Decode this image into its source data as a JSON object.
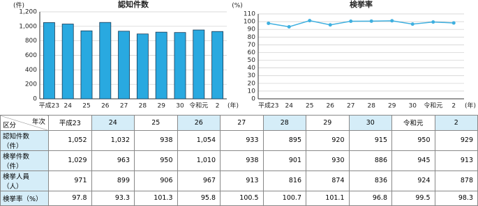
{
  "chart_data": [
    {
      "type": "bar",
      "title": "認知件数",
      "y_unit": "(件)",
      "x_unit": "(年)",
      "color": "#29a9e0",
      "categories": [
        "平成23",
        "24",
        "25",
        "26",
        "27",
        "28",
        "29",
        "30",
        "令和元",
        "2"
      ],
      "values": [
        1052,
        1032,
        938,
        1054,
        933,
        895,
        920,
        915,
        950,
        929
      ],
      "ylim": [
        0,
        1200
      ],
      "yticks": [
        0,
        200,
        400,
        600,
        800,
        {
          "value": 1000,
          "label": "1,000"
        },
        {
          "value": 1200,
          "label": "1,200"
        }
      ],
      "grid": true
    },
    {
      "type": "line",
      "title": "検挙率",
      "y_unit": "(%)",
      "x_unit": "(年)",
      "color": "#3fb0e0",
      "categories": [
        "平成23",
        "24",
        "25",
        "26",
        "27",
        "28",
        "29",
        "30",
        "令和元",
        "2"
      ],
      "values": [
        97.8,
        93.3,
        101.3,
        95.8,
        100.5,
        100.7,
        101.1,
        96.8,
        99.5,
        98.3
      ],
      "ylim": [
        0,
        110
      ],
      "yticks": [
        0,
        10,
        20,
        30,
        40,
        50,
        60,
        70,
        80,
        90,
        100,
        110
      ],
      "grid": true
    }
  ],
  "table": {
    "corner": [
      "年次",
      "区分"
    ],
    "columns": [
      "平成23",
      "24",
      "25",
      "26",
      "27",
      "28",
      "29",
      "30",
      "令和元",
      "2"
    ],
    "rows": [
      {
        "label": "認知件数（件）",
        "cells": [
          "1,052",
          "1,032",
          "938",
          "1,054",
          "933",
          "895",
          "920",
          "915",
          "950",
          "929"
        ]
      },
      {
        "label": "検挙件数（件）",
        "cells": [
          "1,029",
          "963",
          "950",
          "1,010",
          "938",
          "901",
          "930",
          "886",
          "945",
          "913"
        ]
      },
      {
        "label": "検挙人員（人）",
        "cells": [
          "971",
          "899",
          "906",
          "967",
          "913",
          "816",
          "874",
          "836",
          "924",
          "878"
        ]
      },
      {
        "label": "検挙率（%）",
        "cells": [
          "97.8",
          "93.3",
          "101.3",
          "95.8",
          "100.5",
          "100.7",
          "101.1",
          "96.8",
          "99.5",
          "98.3"
        ]
      }
    ]
  }
}
